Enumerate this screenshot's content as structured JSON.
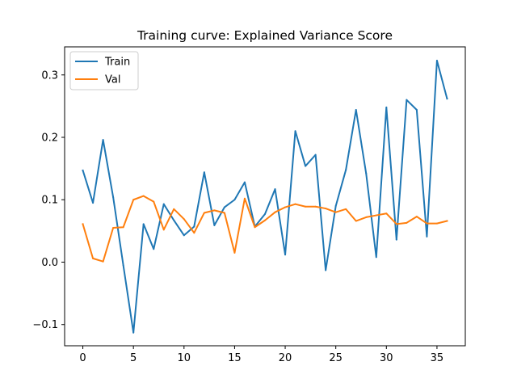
{
  "chart_data": {
    "type": "line",
    "title": "Training curve: Explained Variance Score",
    "xlabel": "",
    "ylabel": "",
    "xlim": [
      -1.8,
      37.8
    ],
    "ylim": [
      -0.134,
      0.345
    ],
    "xticks": [
      0,
      5,
      10,
      15,
      20,
      25,
      30,
      35
    ],
    "xtick_labels": [
      "0",
      "5",
      "10",
      "15",
      "20",
      "25",
      "30",
      "35"
    ],
    "yticks": [
      -0.1,
      0.0,
      0.1,
      0.2,
      0.3
    ],
    "ytick_labels": [
      "−0.1",
      "0.0",
      "0.1",
      "0.2",
      "0.3"
    ],
    "grid": false,
    "legend_position": "upper-left",
    "x": [
      0,
      1,
      2,
      3,
      4,
      5,
      6,
      7,
      8,
      9,
      10,
      11,
      12,
      13,
      14,
      15,
      16,
      17,
      18,
      19,
      20,
      21,
      22,
      23,
      24,
      25,
      26,
      27,
      28,
      29,
      30,
      31,
      32,
      33,
      34,
      35,
      36
    ],
    "series": [
      {
        "name": "Train",
        "color": "#1f77b4",
        "values": [
          0.147,
          0.095,
          0.196,
          0.104,
          -0.005,
          -0.113,
          0.061,
          0.021,
          0.093,
          0.067,
          0.043,
          0.057,
          0.144,
          0.059,
          0.088,
          0.1,
          0.128,
          0.057,
          0.077,
          0.117,
          0.012,
          0.21,
          0.154,
          0.172,
          -0.013,
          0.09,
          0.148,
          0.244,
          0.142,
          0.008,
          0.248,
          0.036,
          0.26,
          0.244,
          0.041,
          0.323,
          0.262
        ]
      },
      {
        "name": "Val",
        "color": "#ff7f0e",
        "values": [
          0.061,
          0.006,
          0.001,
          0.055,
          0.056,
          0.1,
          0.106,
          0.097,
          0.052,
          0.085,
          0.069,
          0.047,
          0.079,
          0.083,
          0.079,
          0.015,
          0.102,
          0.056,
          0.067,
          0.08,
          0.088,
          0.093,
          0.089,
          0.089,
          0.086,
          0.08,
          0.085,
          0.066,
          0.072,
          0.075,
          0.078,
          0.061,
          0.063,
          0.073,
          0.062,
          0.062,
          0.066
        ]
      }
    ]
  }
}
